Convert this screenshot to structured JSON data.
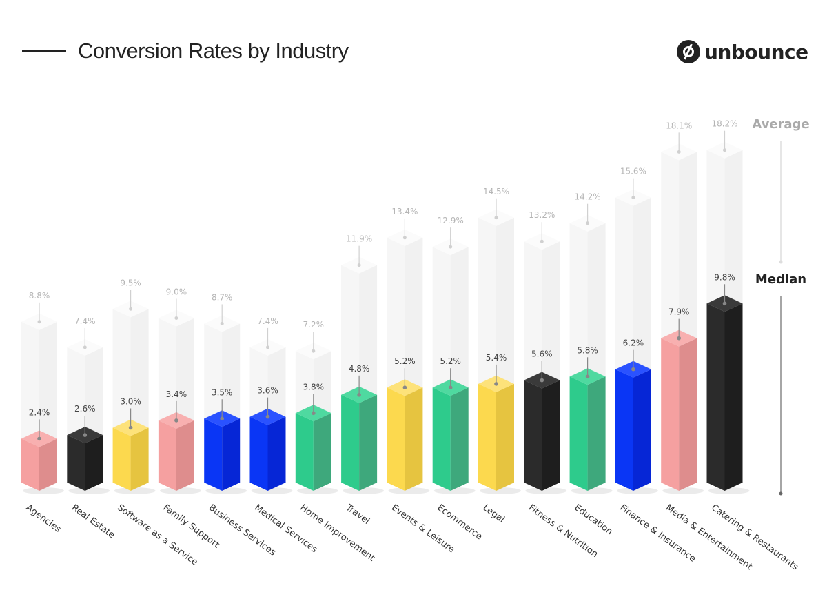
{
  "header": {
    "title": "Conversion Rates by Industry",
    "logo_text": "unbounce"
  },
  "chart_data": {
    "type": "bar",
    "title": "Conversion Rates by Industry",
    "unit": "%",
    "legend": {
      "average_label": "Average",
      "median_label": "Median",
      "placement": "right"
    },
    "grid": false,
    "categories": [
      "Agencies",
      "Real Estate",
      "Software as a Service",
      "Family Support",
      "Business Services",
      "Medical Services",
      "Home Improvement",
      "Travel",
      "Events & Leisure",
      "Ecommerce",
      "Legal",
      "Fitness & Nutrition",
      "Education",
      "Finance & Insurance",
      "Media & Entertainment",
      "Catering & Restaurants"
    ],
    "series": [
      {
        "name": "Average",
        "values": [
          8.8,
          7.4,
          9.5,
          9.0,
          8.7,
          7.4,
          7.2,
          11.9,
          13.4,
          12.9,
          14.5,
          13.2,
          14.2,
          15.6,
          18.1,
          18.2
        ]
      },
      {
        "name": "Median",
        "values": [
          2.4,
          2.6,
          3.0,
          3.4,
          3.5,
          3.6,
          3.8,
          4.8,
          5.2,
          5.2,
          5.4,
          5.6,
          5.8,
          6.2,
          7.9,
          9.8
        ]
      }
    ],
    "data_labels": {
      "average": [
        "8.8%",
        "7.4%",
        "9.5%",
        "9.0%",
        "8.7%",
        "7.4%",
        "7.2%",
        "11.9%",
        "13.4%",
        "12.9%",
        "14.5%",
        "13.2%",
        "14.2%",
        "15.6%",
        "18.1%",
        "18.2%"
      ],
      "median": [
        "2.4%",
        "2.6%",
        "3.0%",
        "3.4%",
        "3.5%",
        "3.6%",
        "3.8%",
        "4.8%",
        "5.2%",
        "5.2%",
        "5.4%",
        "5.6%",
        "5.8%",
        "6.2%",
        "7.9%",
        "9.8%"
      ]
    },
    "bar_colors": [
      "pink",
      "black",
      "yellow",
      "pink",
      "blue",
      "blue",
      "green",
      "green",
      "yellow",
      "green",
      "yellow",
      "black",
      "green",
      "blue",
      "pink",
      "black"
    ],
    "palette": {
      "pink": [
        "#f8b0b0",
        "#f5a0a0",
        "#de8d8d"
      ],
      "black": [
        "#3a3a3a",
        "#2b2b2b",
        "#1e1e1e"
      ],
      "yellow": [
        "#fde27a",
        "#fcd94e",
        "#e6c440"
      ],
      "blue": [
        "#2a52ff",
        "#0a36f5",
        "#0626d6"
      ],
      "green": [
        "#4fd9a0",
        "#2ecb8c",
        "#3ea87c"
      ],
      "ghost": [
        "#fbfbfb",
        "#f6f6f6",
        "#f1f1f1"
      ]
    },
    "ylim": [
      0,
      20
    ]
  }
}
